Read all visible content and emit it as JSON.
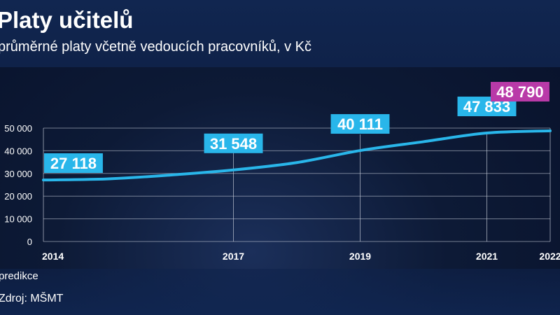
{
  "title": "Platy učitelů",
  "subtitle": "průměrné platy včetně vedoucích pracovníků, v Kč",
  "note": "predikce",
  "source": "Zdroj: MŠMT",
  "colors": {
    "line": "#29b6ea",
    "label_bg": "#29b6ea",
    "prediction_bg": "#b93aa8",
    "grid": "#c9cfdb",
    "text": "#ffffff"
  },
  "chart_data": {
    "type": "line",
    "title": "Platy učitelů",
    "subtitle": "průměrné platy včetně vedoucích pracovníků, v Kč",
    "xlabel": "",
    "ylabel": "",
    "y_ticks": [
      "0",
      "10 000",
      "20 000",
      "30 000",
      "40 000",
      "50 000"
    ],
    "ylim": [
      0,
      50000
    ],
    "x_ticks": [
      "2014",
      "2017",
      "2019",
      "2021",
      "2022"
    ],
    "xlim": [
      2014,
      2022
    ],
    "grid": true,
    "series": [
      {
        "x": [
          2014,
          2015,
          2016,
          2017,
          2018,
          2019,
          2020,
          2021,
          2022
        ],
        "values": [
          27118,
          27600,
          29300,
          31548,
          34800,
          40111,
          44000,
          47833,
          48790
        ]
      }
    ],
    "data_labels": [
      {
        "x": 2014,
        "y": 27118,
        "text": "27 118"
      },
      {
        "x": 2017,
        "y": 31548,
        "text": "31 548"
      },
      {
        "x": 2019,
        "y": 40111,
        "text": "40 111"
      },
      {
        "x": 2021,
        "y": 47833,
        "text": "47 833"
      },
      {
        "x": 2022,
        "y": 48790,
        "text": "48 790",
        "prediction": true
      }
    ]
  }
}
